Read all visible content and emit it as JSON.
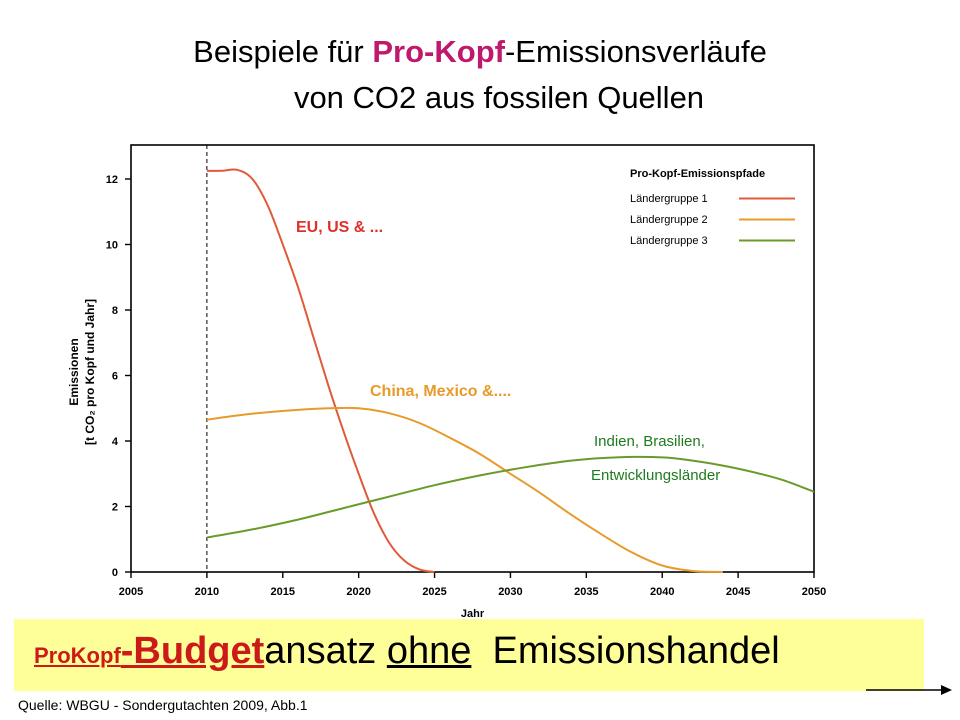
{
  "title": {
    "line1_pre": "Beispiele für ",
    "line1_highlight": "Pro-Kopf",
    "line1_post": "-Emissionsverläufe",
    "line2": "von CO2 aus fossilen Quellen"
  },
  "chart_data": {
    "type": "line",
    "xlabel": "Jahr",
    "ylabel_line1": "Emissionen",
    "ylabel_line2": "[t CO₂ pro Kopf und Jahr]",
    "xlim": [
      2005,
      2050
    ],
    "ylim": [
      0,
      13
    ],
    "x_ticks": [
      2005,
      2010,
      2015,
      2020,
      2025,
      2030,
      2035,
      2040,
      2045,
      2050
    ],
    "y_ticks": [
      0,
      2,
      4,
      6,
      8,
      10,
      12
    ],
    "reference_line_x": 2010,
    "grid": false,
    "legend": {
      "title": "Pro-Kopf-Emissionspfade",
      "placement": "top-right"
    },
    "series": [
      {
        "name": "Ländergruppe 1",
        "color": "#e05a3a",
        "x": [
          2010,
          2011,
          2012,
          2013,
          2014,
          2015,
          2016,
          2017,
          2018,
          2019,
          2020,
          2021,
          2022,
          2023,
          2024,
          2025
        ],
        "y": [
          12.25,
          12.25,
          12.28,
          12.0,
          11.2,
          10.0,
          8.7,
          7.2,
          5.7,
          4.3,
          3.0,
          1.8,
          0.9,
          0.35,
          0.08,
          0.0
        ]
      },
      {
        "name": "Ländergruppe 2",
        "color": "#e89a2a",
        "x": [
          2010,
          2012,
          2014,
          2016,
          2018,
          2020,
          2022,
          2024,
          2026,
          2028,
          2030,
          2032,
          2034,
          2036,
          2038,
          2040,
          2042,
          2044
        ],
        "y": [
          4.65,
          4.78,
          4.88,
          4.95,
          5.0,
          5.0,
          4.85,
          4.55,
          4.1,
          3.6,
          3.0,
          2.4,
          1.75,
          1.15,
          0.6,
          0.2,
          0.03,
          0.0
        ]
      },
      {
        "name": "Ländergruppe 3",
        "color": "#6a9a2a",
        "x": [
          2010,
          2013,
          2016,
          2019,
          2022,
          2025,
          2028,
          2031,
          2034,
          2037,
          2040,
          2042,
          2044,
          2046,
          2048,
          2050
        ],
        "y": [
          1.05,
          1.3,
          1.6,
          1.95,
          2.3,
          2.65,
          2.95,
          3.2,
          3.4,
          3.5,
          3.5,
          3.4,
          3.25,
          3.05,
          2.8,
          2.45
        ]
      }
    ],
    "annotations": [
      {
        "text": "EU, US & ...",
        "color": "#e0302a"
      },
      {
        "text": "China, Mexico &....",
        "color": "#e89a2a"
      },
      {
        "text": "Indien, Brasilien,",
        "color": "#1e7a1e"
      },
      {
        "text": "Entwicklungsländer",
        "color": "#1e7a1e"
      }
    ]
  },
  "banner": {
    "small": "ProKopf",
    "big": "-Budget",
    "rest": "ansatz ",
    "ohne": "ohne",
    "tail": "  Emissionshandel"
  },
  "source": "Quelle: WBGU - Sondergutachten 2009, Abb.1"
}
